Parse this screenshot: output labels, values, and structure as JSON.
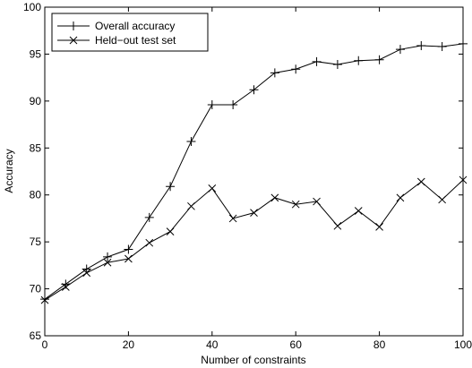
{
  "chart_data": {
    "type": "line",
    "title": "",
    "xlabel": "Number of constraints",
    "ylabel": "Accuracy",
    "xlim": [
      0,
      100
    ],
    "ylim": [
      65,
      100
    ],
    "xticks": [
      0,
      20,
      40,
      60,
      80,
      100
    ],
    "yticks": [
      65,
      70,
      75,
      80,
      85,
      90,
      95,
      100
    ],
    "grid": false,
    "legend_position": "top-left",
    "x": [
      0,
      5,
      10,
      15,
      20,
      25,
      30,
      35,
      40,
      45,
      50,
      55,
      60,
      65,
      70,
      75,
      80,
      85,
      90,
      95,
      100
    ],
    "series": [
      {
        "name": "Overall accuracy",
        "marker": "plus",
        "color": "#000000",
        "values": [
          68.9,
          70.5,
          72.1,
          73.4,
          74.2,
          77.6,
          80.9,
          85.7,
          89.6,
          89.6,
          91.2,
          93.0,
          93.4,
          94.2,
          93.9,
          94.3,
          94.4,
          95.5,
          95.9,
          95.8,
          96.1
        ]
      },
      {
        "name": "Held−out test set",
        "marker": "x",
        "color": "#000000",
        "values": [
          68.8,
          70.2,
          71.7,
          72.8,
          73.2,
          74.9,
          76.1,
          78.8,
          80.7,
          77.5,
          78.1,
          79.7,
          79.0,
          79.3,
          76.7,
          78.3,
          76.6,
          79.7,
          81.4,
          79.5,
          81.6
        ]
      }
    ]
  }
}
